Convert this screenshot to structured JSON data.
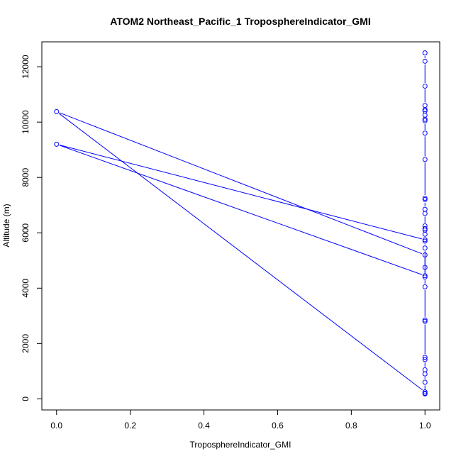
{
  "chart_data": {
    "type": "line",
    "title": "ATOM2 Northeast_Pacific_1 TroposphereIndicator_GMI",
    "xlabel": "TroposphereIndicator_GMI",
    "ylabel": "Altitude (m)",
    "xlim": [
      -0.04,
      1.04
    ],
    "ylim": [
      -400,
      12900
    ],
    "xticks": [
      0.0,
      0.2,
      0.4,
      0.6,
      0.8,
      1.0
    ],
    "xtick_labels": [
      "0.0",
      "0.2",
      "0.4",
      "0.6",
      "0.8",
      "1.0"
    ],
    "yticks": [
      0,
      2000,
      4000,
      6000,
      8000,
      10000,
      12000
    ],
    "ytick_labels": [
      "0",
      "2000",
      "4000",
      "6000",
      "8000",
      "10000",
      "12000"
    ],
    "grid": false,
    "series": [
      {
        "color": "#0000ff",
        "style": "both",
        "points": [
          {
            "x": 1,
            "y": 5750
          },
          {
            "x": 0,
            "y": 9200
          },
          {
            "x": 1,
            "y": 4450
          },
          {
            "x": 1,
            "y": 5200
          },
          {
            "x": 0,
            "y": 10380
          },
          {
            "x": 1,
            "y": 250
          },
          {
            "x": 1,
            "y": 180
          },
          {
            "x": 1,
            "y": 200
          },
          {
            "x": 1,
            "y": 600
          },
          {
            "x": 1,
            "y": 900
          },
          {
            "x": 1,
            "y": 1050
          },
          {
            "x": 1,
            "y": 1420
          },
          {
            "x": 1,
            "y": 1500
          },
          {
            "x": 1,
            "y": 2800
          },
          {
            "x": 1,
            "y": 2850
          },
          {
            "x": 1,
            "y": 4050
          },
          {
            "x": 1,
            "y": 4400
          },
          {
            "x": 1,
            "y": 4750
          },
          {
            "x": 1,
            "y": 5450
          },
          {
            "x": 1,
            "y": 5700
          },
          {
            "x": 1,
            "y": 5950
          },
          {
            "x": 1,
            "y": 6100
          },
          {
            "x": 1,
            "y": 6150
          },
          {
            "x": 1,
            "y": 6250
          },
          {
            "x": 1,
            "y": 6700
          },
          {
            "x": 1,
            "y": 6850
          },
          {
            "x": 1,
            "y": 7200
          },
          {
            "x": 1,
            "y": 7250
          },
          {
            "x": 1,
            "y": 8650
          },
          {
            "x": 1,
            "y": 9600
          },
          {
            "x": 1,
            "y": 10050
          },
          {
            "x": 1,
            "y": 10100
          },
          {
            "x": 1,
            "y": 10250
          },
          {
            "x": 1,
            "y": 10400
          },
          {
            "x": 1,
            "y": 10450
          },
          {
            "x": 1,
            "y": 10600
          },
          {
            "x": 1,
            "y": 11300
          },
          {
            "x": 1,
            "y": 12200
          },
          {
            "x": 1,
            "y": 12500
          }
        ]
      }
    ]
  }
}
